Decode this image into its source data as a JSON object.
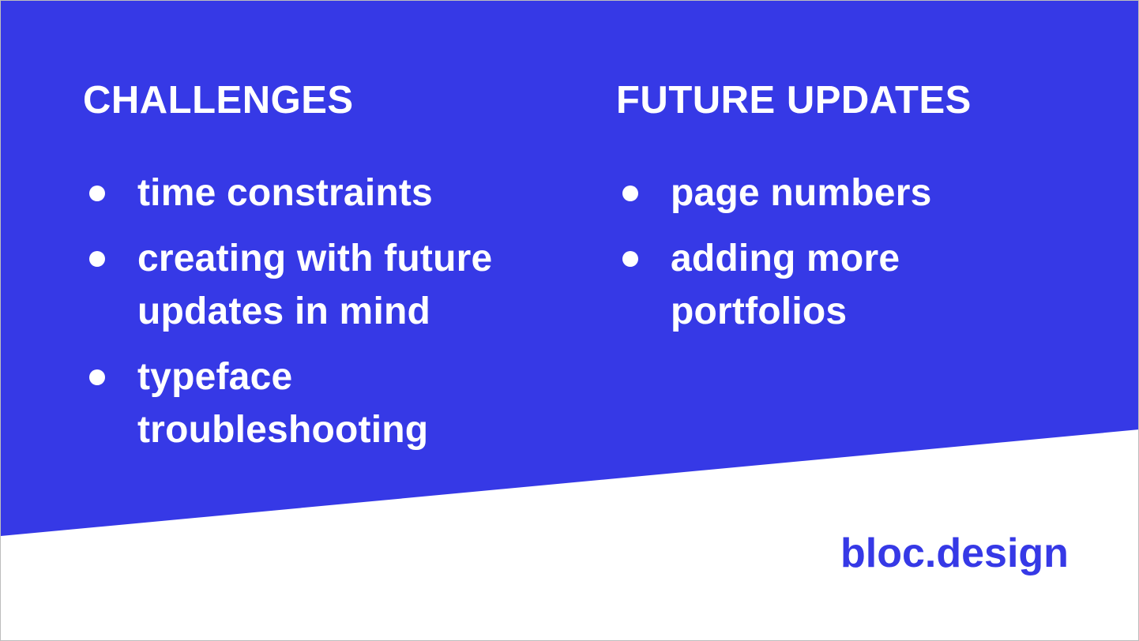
{
  "colors": {
    "accent": "#3639e6",
    "background": "#ffffff",
    "text_on_accent": "#ffffff"
  },
  "challenges": {
    "heading": "CHALLENGES",
    "items": [
      "time constraints",
      "creating with future updates in mind",
      "typeface troubleshooting"
    ]
  },
  "future_updates": {
    "heading": "FUTURE UPDATES",
    "items": [
      "page numbers",
      "adding more portfolios"
    ]
  },
  "footer": {
    "brand": "bloc.design"
  }
}
